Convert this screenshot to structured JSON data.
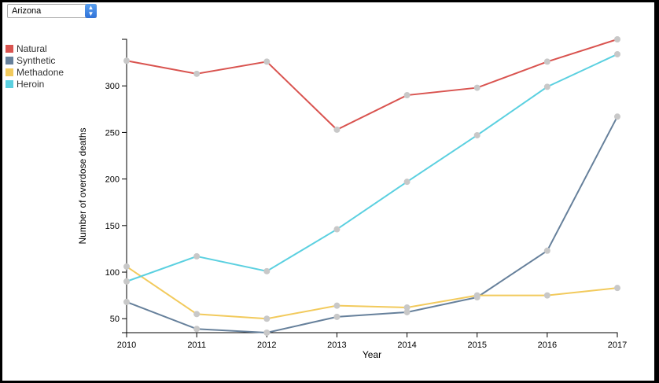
{
  "state_select": {
    "value": "Arizona"
  },
  "chart_data": {
    "type": "line",
    "title": "",
    "xlabel": "Year",
    "ylabel": "Number of overdose deaths",
    "x": [
      2010,
      2011,
      2012,
      2013,
      2014,
      2015,
      2016,
      2017
    ],
    "xlim": [
      2010,
      2017
    ],
    "ylim": [
      35,
      350
    ],
    "yticks": [
      50,
      100,
      150,
      200,
      250,
      300
    ],
    "grid": false,
    "legend_position": "top-left",
    "series": [
      {
        "name": "Natural",
        "color": "#d9534f",
        "values": [
          327,
          313,
          326,
          253,
          290,
          298,
          326,
          350
        ]
      },
      {
        "name": "Synthetic",
        "color": "#66809b",
        "values": [
          68,
          39,
          35,
          52,
          57,
          73,
          123,
          267
        ]
      },
      {
        "name": "Methadone",
        "color": "#f2ca5c",
        "values": [
          106,
          55,
          50,
          64,
          62,
          75,
          75,
          83
        ]
      },
      {
        "name": "Heroin",
        "color": "#5bd0e0",
        "values": [
          90,
          117,
          101,
          146,
          197,
          247,
          299,
          334
        ]
      }
    ]
  }
}
